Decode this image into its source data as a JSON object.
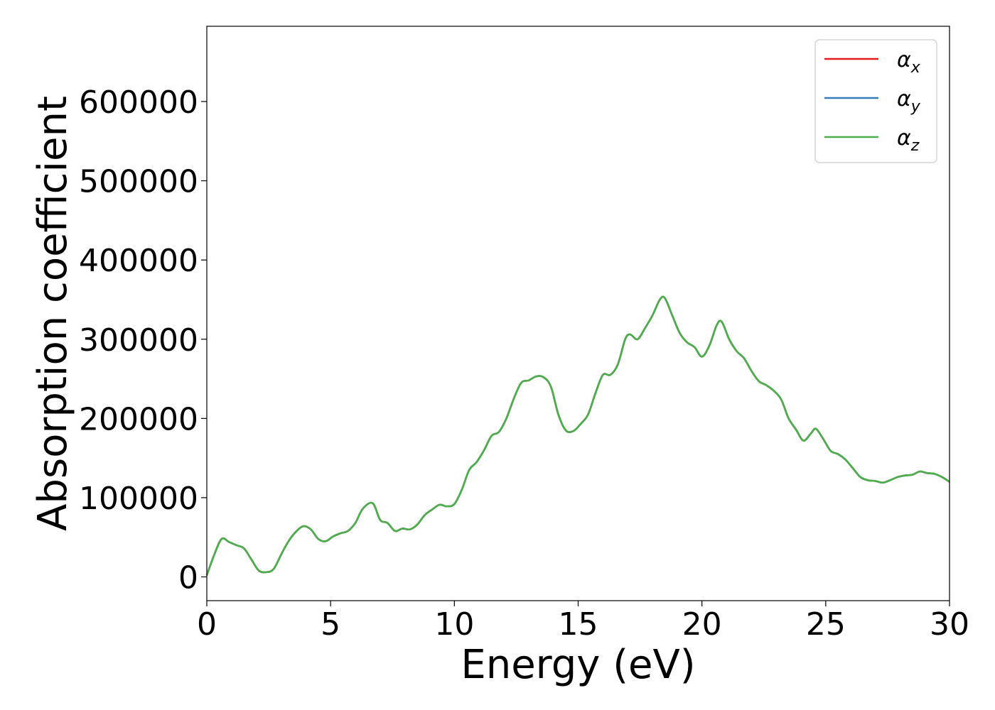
{
  "chart_data": {
    "type": "line",
    "xlabel": "Energy (eV)",
    "ylabel": "Absorption coefficient",
    "xlim": [
      0,
      30
    ],
    "ylim": [
      -30000,
      695000
    ],
    "xticks": [
      0,
      5,
      10,
      15,
      20,
      25,
      30
    ],
    "xtick_labels": [
      "0",
      "5",
      "10",
      "15",
      "20",
      "25",
      "30"
    ],
    "yticks": [
      0,
      100000,
      200000,
      300000,
      400000,
      500000,
      600000
    ],
    "ytick_labels": [
      "0",
      "100000",
      "200000",
      "300000",
      "400000",
      "500000",
      "600000"
    ],
    "grid": false,
    "legend_position": "top-right",
    "x": [
      0,
      0.3,
      0.6,
      0.9,
      1.2,
      1.5,
      1.8,
      2.1,
      2.4,
      2.7,
      3.0,
      3.3,
      3.6,
      3.9,
      4.2,
      4.5,
      4.8,
      5.1,
      5.4,
      5.7,
      6.0,
      6.3,
      6.7,
      7.0,
      7.3,
      7.6,
      7.9,
      8.2,
      8.5,
      8.8,
      9.1,
      9.4,
      9.7,
      10.0,
      10.3,
      10.6,
      10.9,
      11.2,
      11.5,
      11.8,
      12.1,
      12.4,
      12.7,
      13.0,
      13.3,
      13.6,
      13.9,
      14.2,
      14.5,
      14.8,
      15.1,
      15.4,
      15.7,
      16.0,
      16.3,
      16.6,
      16.9,
      17.1,
      17.4,
      17.7,
      18.0,
      18.3,
      18.5,
      18.8,
      19.1,
      19.4,
      19.7,
      20.0,
      20.3,
      20.6,
      20.8,
      21.1,
      21.4,
      21.7,
      22.0,
      22.3,
      22.6,
      22.9,
      23.2,
      23.5,
      23.8,
      24.1,
      24.4,
      24.6,
      24.9,
      25.2,
      25.5,
      25.8,
      26.1,
      26.4,
      26.7,
      27.0,
      27.3,
      27.6,
      27.9,
      28.2,
      28.5,
      28.8,
      29.1,
      29.4,
      29.7,
      30.0
    ],
    "series": [
      {
        "name": "αx",
        "label_base": "α",
        "label_sub": "x",
        "color": "#e41a1c",
        "values": [
          2000,
          28000,
          48000,
          44000,
          40000,
          36000,
          22000,
          8000,
          6000,
          10000,
          28000,
          45000,
          57000,
          64000,
          60000,
          48000,
          45000,
          51000,
          55000,
          58000,
          68000,
          86000,
          93000,
          72000,
          68000,
          58000,
          61000,
          60000,
          66000,
          78000,
          85000,
          91000,
          89000,
          92000,
          110000,
          135000,
          145000,
          160000,
          178000,
          183000,
          200000,
          225000,
          245000,
          248000,
          253000,
          252000,
          240000,
          205000,
          185000,
          184000,
          193000,
          205000,
          232000,
          255000,
          255000,
          268000,
          300000,
          306000,
          300000,
          314000,
          330000,
          350000,
          352000,
          330000,
          308000,
          296000,
          290000,
          278000,
          292000,
          318000,
          322000,
          300000,
          285000,
          276000,
          260000,
          247000,
          242000,
          235000,
          224000,
          200000,
          186000,
          172000,
          181000,
          187000,
          174000,
          159000,
          155000,
          148000,
          137000,
          126000,
          122000,
          121000,
          119000,
          122000,
          126000,
          128000,
          129000,
          133000,
          131000,
          130000,
          126000,
          120000
        ]
      },
      {
        "name": "αy",
        "label_base": "α",
        "label_sub": "y",
        "color": "#377eb8",
        "values": [
          2000,
          28000,
          48000,
          44000,
          40000,
          36000,
          22000,
          8000,
          6000,
          10000,
          28000,
          45000,
          57000,
          64000,
          60000,
          48000,
          45000,
          51000,
          55000,
          58000,
          68000,
          86000,
          93000,
          72000,
          68000,
          58000,
          61000,
          60000,
          66000,
          78000,
          85000,
          91000,
          89000,
          92000,
          110000,
          135000,
          145000,
          160000,
          178000,
          183000,
          200000,
          225000,
          245000,
          248000,
          253000,
          252000,
          240000,
          205000,
          185000,
          184000,
          193000,
          205000,
          232000,
          255000,
          255000,
          268000,
          300000,
          306000,
          300000,
          314000,
          330000,
          350000,
          352000,
          330000,
          308000,
          296000,
          290000,
          278000,
          292000,
          318000,
          322000,
          300000,
          285000,
          276000,
          260000,
          247000,
          242000,
          235000,
          224000,
          200000,
          186000,
          172000,
          181000,
          187000,
          174000,
          159000,
          155000,
          148000,
          137000,
          126000,
          122000,
          121000,
          119000,
          122000,
          126000,
          128000,
          129000,
          133000,
          131000,
          130000,
          126000,
          120000
        ]
      },
      {
        "name": "αz",
        "label_base": "α",
        "label_sub": "z",
        "color": "#4daf4a",
        "values": [
          2000,
          28000,
          48000,
          44000,
          40000,
          36000,
          22000,
          8000,
          6000,
          10000,
          28000,
          45000,
          57000,
          64000,
          60000,
          48000,
          45000,
          51000,
          55000,
          58000,
          68000,
          86000,
          93000,
          72000,
          68000,
          58000,
          61000,
          60000,
          66000,
          78000,
          85000,
          91000,
          89000,
          92000,
          110000,
          135000,
          145000,
          160000,
          178000,
          183000,
          200000,
          225000,
          245000,
          248000,
          253000,
          252000,
          240000,
          205000,
          185000,
          184000,
          193000,
          205000,
          232000,
          255000,
          255000,
          268000,
          300000,
          306000,
          300000,
          314000,
          330000,
          350000,
          352000,
          330000,
          308000,
          296000,
          290000,
          278000,
          292000,
          318000,
          322000,
          300000,
          285000,
          276000,
          260000,
          247000,
          242000,
          235000,
          224000,
          200000,
          186000,
          172000,
          181000,
          187000,
          174000,
          159000,
          155000,
          148000,
          137000,
          126000,
          122000,
          121000,
          119000,
          122000,
          126000,
          128000,
          129000,
          133000,
          131000,
          130000,
          126000,
          120000
        ]
      }
    ]
  }
}
